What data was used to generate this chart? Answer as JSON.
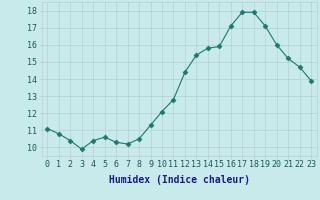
{
  "x": [
    0,
    1,
    2,
    3,
    4,
    5,
    6,
    7,
    8,
    9,
    10,
    11,
    12,
    13,
    14,
    15,
    16,
    17,
    18,
    19,
    20,
    21,
    22,
    23
  ],
  "y": [
    11.1,
    10.8,
    10.4,
    9.9,
    10.4,
    10.6,
    10.3,
    10.2,
    10.5,
    11.3,
    12.1,
    12.8,
    14.4,
    15.4,
    15.8,
    15.9,
    17.1,
    17.9,
    17.9,
    17.1,
    16.0,
    15.2,
    14.7,
    13.9
  ],
  "xlabel": "Humidex (Indice chaleur)",
  "ylim": [
    9.5,
    18.5
  ],
  "xlim": [
    -0.5,
    23.5
  ],
  "line_color": "#1a7a6e",
  "marker": "D",
  "markersize": 2.5,
  "linewidth": 0.8,
  "bg_color": "#c8eaea",
  "grid_color": "#b8d0d0",
  "yticks": [
    10,
    11,
    12,
    13,
    14,
    15,
    16,
    17,
    18
  ],
  "xticks": [
    0,
    1,
    2,
    3,
    4,
    5,
    6,
    7,
    8,
    9,
    10,
    11,
    12,
    13,
    14,
    15,
    16,
    17,
    18,
    19,
    20,
    21,
    22,
    23
  ],
  "tick_fontsize": 6,
  "xlabel_fontsize": 7,
  "tick_color": "#1a5a5a",
  "xlabel_color": "#1a1a8c"
}
